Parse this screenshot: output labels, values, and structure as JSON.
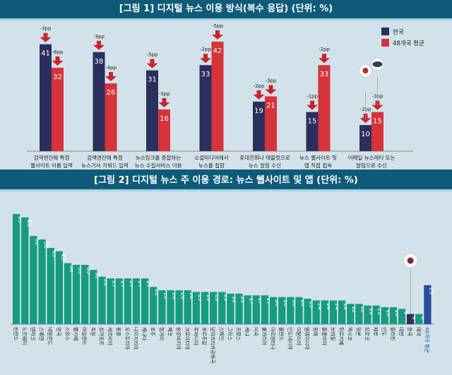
{
  "figure1": {
    "title": "[그림 1] 디지털 뉴스 이용 방식(복수 응답) (단위: %)",
    "chart_data": {
      "type": "bar",
      "title": "[그림 1] 디지털 뉴스 이용 방식(복수 응답) (단위: %)",
      "legend_position": "top-right",
      "categories": [
        [
          "검색엔진에 특정",
          "웹사이트 이름 입력"
        ],
        [
          "검색엔진에 특정",
          "뉴스기사 키워드 입력"
        ],
        [
          "뉴스링크를 종합하는",
          "뉴스 수집서비스 이용"
        ],
        [
          "소셜미디어에서",
          "뉴스를 접함"
        ],
        [
          "휴대전화나 태블릿으로",
          "뉴스 알림 수신"
        ],
        [
          "뉴스 웹사이트 및",
          "앱 직접 접속"
        ],
        [
          "이메일 뉴스레터 또는",
          "알림으로 수신"
        ]
      ],
      "series": [
        {
          "name": "한국",
          "color": "#2b2f5e",
          "values": [
            41,
            38,
            31,
            33,
            19,
            15,
            10
          ],
          "changes": [
            "-3pp",
            "-3pp",
            "-5pp",
            "-2pp",
            "-2pp",
            "-1pp",
            "-2pp"
          ]
        },
        {
          "name": "48개국 평균",
          "color": "#d6333a",
          "values": [
            32,
            26,
            16,
            42,
            21,
            33,
            15
          ],
          "changes": [
            "-6pp",
            "-4pp",
            "-3pp",
            "-5pp",
            "-3pp",
            "-2pp",
            "-3pp"
          ]
        }
      ],
      "ylim": [
        0,
        45
      ],
      "grid": false,
      "icons": [
        "korea-flag-icon",
        "world-map-icon"
      ]
    }
  },
  "figure2": {
    "title": "[그림 2] 디지털 뉴스 주 이용 경로: 뉴스 웹사이트 및 앱 (단위: %)",
    "chart_data": {
      "type": "bar",
      "title": "[그림 2] 디지털 뉴스 주 이용 경로: 뉴스 웹사이트 및 앱 (단위: %)",
      "categories": [
        "핀란드",
        "노르웨이",
        "덴마크",
        "스웨덴",
        "네덜란드",
        "영국",
        "스위스",
        "벨기에",
        "아일랜드",
        "독일",
        "싱가포르",
        "세르비아",
        "홍콩",
        "오스트리아",
        "나이지리아",
        "캐나다",
        "호주",
        "헝가리",
        "체코",
        "슬로바키아",
        "크로아티아",
        "루마니아",
        "포르투갈",
        "남아프리카공화국",
        "스페인",
        "그리스",
        "프랑스",
        "케냐",
        "미국",
        "불가리아",
        "아르헨티나",
        "폴란드",
        "인도네시아",
        "이탈리아",
        "말레이시아",
        "칠레",
        "콜롬비아",
        "브라질",
        "튀르키예",
        "멕시코",
        "일본",
        "모로코",
        "페루",
        "인도",
        "필리핀",
        "대만",
        "한국",
        "태국",
        "48개국 평균"
      ],
      "values": [
        65,
        63,
        52,
        50,
        45,
        43,
        36,
        35,
        35,
        32,
        28,
        27,
        27,
        27,
        27,
        27,
        22,
        20,
        20,
        20,
        20,
        19,
        19,
        19,
        19,
        18,
        18,
        17,
        17,
        17,
        16,
        16,
        16,
        16,
        15,
        14,
        14,
        14,
        14,
        12,
        12,
        11,
        11,
        10,
        10,
        9,
        6,
        6,
        23
      ],
      "colors": {
        "default": "#169a80",
        "highlight": "#2b2f5e",
        "average": "#2a4ea0"
      },
      "highlight": "한국",
      "average": "48개국 평균",
      "ylim": [
        0,
        70
      ],
      "grid": false
    }
  }
}
